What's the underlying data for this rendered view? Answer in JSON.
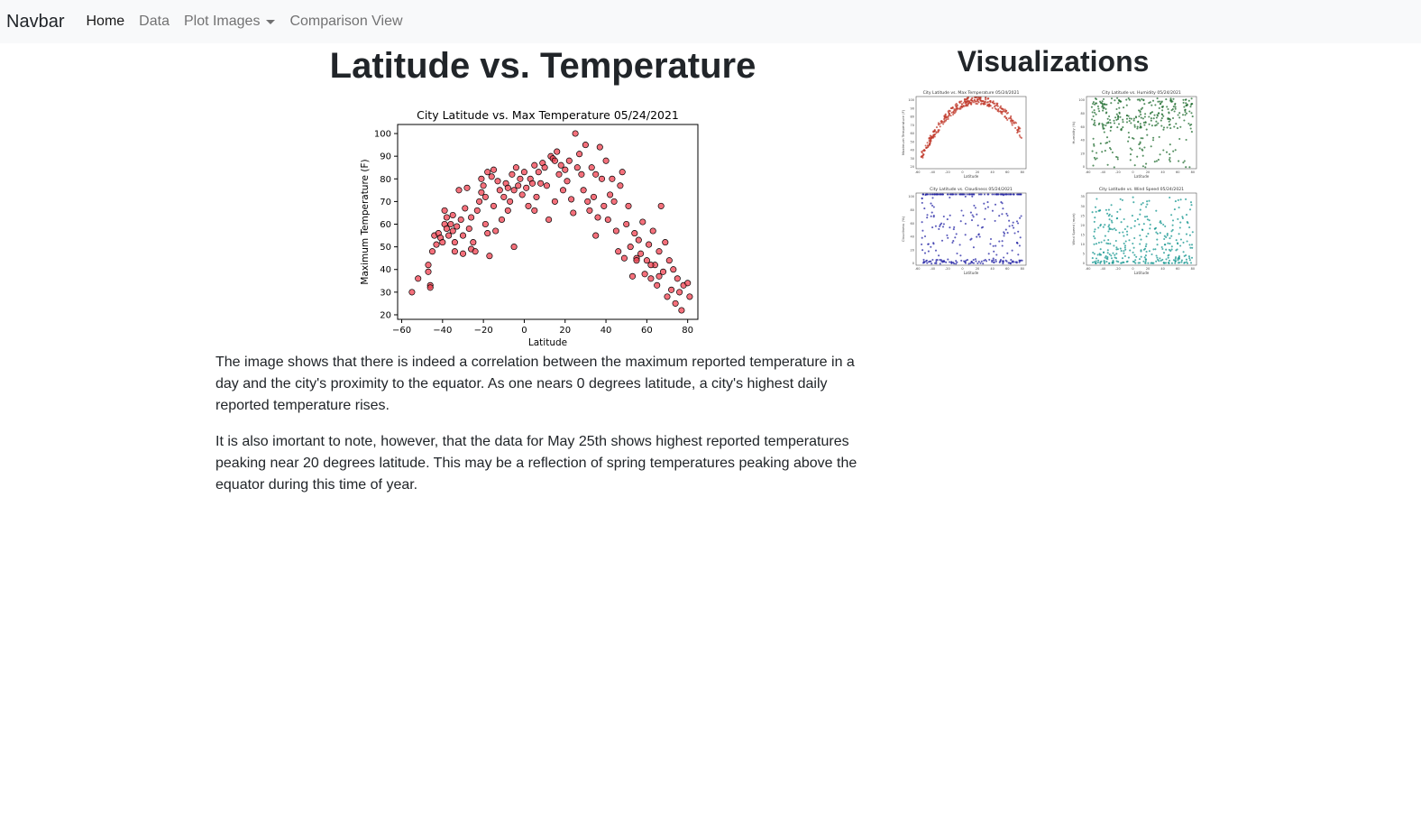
{
  "navbar": {
    "brand": "Navbar",
    "links": [
      "Home",
      "Data",
      "Plot Images",
      "Comparison View"
    ]
  },
  "main": {
    "title": "Latitude vs. Temperature",
    "paragraphs": [
      "The image shows that there is indeed a correlation between the maximum reported temperature in a day and the city's proximity to the equator. As one nears 0 degrees latitude, a city's highest daily reported temperature rises.",
      "It is also imortant to note, however, that the data for May 25th shows highest reported temperatures peaking near 20 degrees latitude. This may be a reflection of spring temperatures peaking above the equator during this time of year."
    ]
  },
  "visualizations": {
    "title": "Visualizations",
    "thumbnails": [
      {
        "title": "City Latitude vs. Max Temperature 05/24/2021",
        "xlabel": "Latitude",
        "ylabel": "Maximum Temperature (F)",
        "color": "#c0392b",
        "yticks": [
          "20",
          "30",
          "40",
          "50",
          "60",
          "70",
          "80",
          "90",
          "100"
        ]
      },
      {
        "title": "City Latitude vs. Humidity 05/24/2021",
        "xlabel": "Latitude",
        "ylabel": "Humidity (%)",
        "color": "#1e6b2e",
        "yticks": [
          "0",
          "20",
          "40",
          "60",
          "80",
          "100"
        ]
      },
      {
        "title": "City Latitude vs. Cloudiness 05/24/2021",
        "xlabel": "Latitude",
        "ylabel": "Cloudiness (%)",
        "color": "#2626a6",
        "yticks": [
          "0",
          "20",
          "40",
          "60",
          "80",
          "100"
        ]
      },
      {
        "title": "City Latitude vs. Wind Speed 05/24/2021",
        "xlabel": "Latitude",
        "ylabel": "Wind Speed (mph)",
        "color": "#13958f",
        "yticks": [
          "0",
          "5",
          "10",
          "15",
          "20",
          "25",
          "30",
          "35"
        ]
      }
    ]
  },
  "chart_data": {
    "type": "scatter",
    "title": "City Latitude vs. Max Temperature 05/24/2021",
    "xlabel": "Latitude",
    "ylabel": "Maximum Temperature (F)",
    "xlim": [
      -62,
      85
    ],
    "ylim": [
      18,
      104
    ],
    "xticks": [
      -60,
      -40,
      -20,
      0,
      20,
      40,
      60,
      80
    ],
    "yticks": [
      20,
      30,
      40,
      50,
      60,
      70,
      80,
      90,
      100
    ],
    "marker_color": "#f0404f",
    "edge_color": "#000000",
    "points": [
      [
        -55,
        30
      ],
      [
        -52,
        36
      ],
      [
        -47,
        42
      ],
      [
        -47,
        39
      ],
      [
        -46,
        33
      ],
      [
        -46,
        32
      ],
      [
        -44,
        55
      ],
      [
        -43,
        51
      ],
      [
        -42,
        56
      ],
      [
        -41,
        54
      ],
      [
        -40,
        52
      ],
      [
        -39,
        66
      ],
      [
        -39,
        60
      ],
      [
        -38,
        58
      ],
      [
        -38,
        63
      ],
      [
        -37,
        55
      ],
      [
        -36,
        60
      ],
      [
        -35,
        64
      ],
      [
        -35,
        57
      ],
      [
        -34,
        52
      ],
      [
        -34,
        48
      ],
      [
        -33,
        59
      ],
      [
        -32,
        75
      ],
      [
        -31,
        62
      ],
      [
        -30,
        55
      ],
      [
        -29,
        67
      ],
      [
        -28,
        76
      ],
      [
        -27,
        58
      ],
      [
        -26,
        63
      ],
      [
        -26,
        49
      ],
      [
        -25,
        52
      ],
      [
        -24,
        48
      ],
      [
        -23,
        66
      ],
      [
        -22,
        70
      ],
      [
        -21,
        74
      ],
      [
        -21,
        80
      ],
      [
        -20,
        77
      ],
      [
        -19,
        72
      ],
      [
        -19,
        60
      ],
      [
        -18,
        83
      ],
      [
        -18,
        56
      ],
      [
        -17,
        46
      ],
      [
        -16,
        81
      ],
      [
        -15,
        84
      ],
      [
        -15,
        68
      ],
      [
        -14,
        57
      ],
      [
        -13,
        79
      ],
      [
        -12,
        75
      ],
      [
        -11,
        62
      ],
      [
        -10,
        72
      ],
      [
        -9,
        78
      ],
      [
        -8,
        76
      ],
      [
        -8,
        66
      ],
      [
        -7,
        70
      ],
      [
        -6,
        82
      ],
      [
        -5,
        75
      ],
      [
        -5,
        50
      ],
      [
        -4,
        85
      ],
      [
        -3,
        77
      ],
      [
        -2,
        80
      ],
      [
        -1,
        73
      ],
      [
        0,
        83
      ],
      [
        1,
        76
      ],
      [
        2,
        68
      ],
      [
        3,
        80
      ],
      [
        4,
        78
      ],
      [
        5,
        86
      ],
      [
        6,
        72
      ],
      [
        7,
        83
      ],
      [
        8,
        78
      ],
      [
        9,
        87
      ],
      [
        10,
        85
      ],
      [
        11,
        77
      ],
      [
        12,
        62
      ],
      [
        13,
        90
      ],
      [
        14,
        89
      ],
      [
        15,
        88
      ],
      [
        16,
        92
      ],
      [
        17,
        82
      ],
      [
        18,
        86
      ],
      [
        19,
        75
      ],
      [
        20,
        84
      ],
      [
        21,
        79
      ],
      [
        22,
        88
      ],
      [
        23,
        71
      ],
      [
        24,
        65
      ],
      [
        25,
        100
      ],
      [
        26,
        85
      ],
      [
        27,
        91
      ],
      [
        28,
        82
      ],
      [
        29,
        75
      ],
      [
        30,
        95
      ],
      [
        31,
        70
      ],
      [
        32,
        66
      ],
      [
        33,
        85
      ],
      [
        34,
        72
      ],
      [
        35,
        55
      ],
      [
        36,
        63
      ],
      [
        37,
        94
      ],
      [
        38,
        80
      ],
      [
        39,
        68
      ],
      [
        40,
        88
      ],
      [
        41,
        62
      ],
      [
        42,
        73
      ],
      [
        43,
        80
      ],
      [
        44,
        70
      ],
      [
        45,
        57
      ],
      [
        46,
        48
      ],
      [
        47,
        77
      ],
      [
        48,
        83
      ],
      [
        49,
        45
      ],
      [
        50,
        60
      ],
      [
        51,
        68
      ],
      [
        52,
        50
      ],
      [
        53,
        37
      ],
      [
        54,
        56
      ],
      [
        55,
        45
      ],
      [
        56,
        53
      ],
      [
        57,
        47
      ],
      [
        58,
        61
      ],
      [
        59,
        38
      ],
      [
        60,
        44
      ],
      [
        61,
        51
      ],
      [
        62,
        36
      ],
      [
        63,
        57
      ],
      [
        64,
        42
      ],
      [
        65,
        33
      ],
      [
        66,
        48
      ],
      [
        67,
        68
      ],
      [
        68,
        39
      ],
      [
        69,
        52
      ],
      [
        70,
        28
      ],
      [
        71,
        44
      ],
      [
        72,
        31
      ],
      [
        73,
        40
      ],
      [
        74,
        25
      ],
      [
        75,
        36
      ],
      [
        76,
        30
      ],
      [
        77,
        22
      ],
      [
        78,
        33
      ],
      [
        80,
        34
      ],
      [
        81,
        28
      ],
      [
        -45,
        48
      ],
      [
        -30,
        47
      ],
      [
        5,
        66
      ],
      [
        15,
        70
      ],
      [
        35,
        82
      ],
      [
        55,
        44
      ],
      [
        62,
        42
      ],
      [
        66,
        37
      ]
    ]
  }
}
